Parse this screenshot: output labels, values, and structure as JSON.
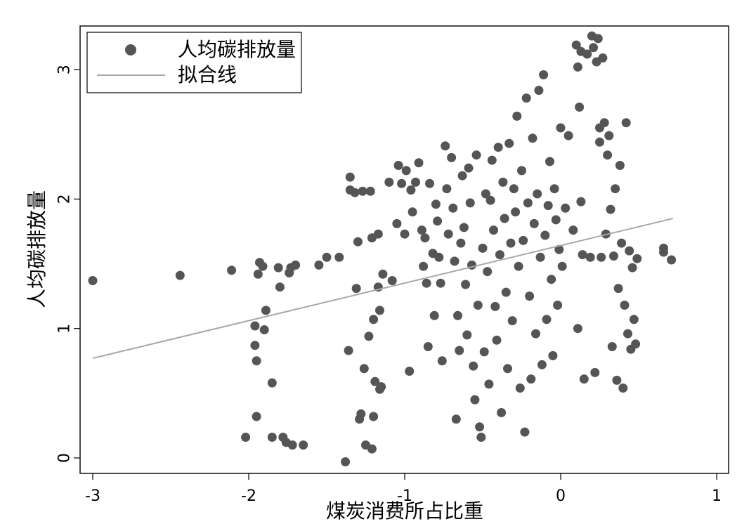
{
  "chart_data": {
    "type": "scatter",
    "xlabel": "煤炭消费所占比重",
    "ylabel": "人均碳排放量",
    "xlim": [
      -3.05,
      1.07
    ],
    "ylim": [
      -0.08,
      3.35
    ],
    "xticks": [
      "-3",
      "-2",
      "-1",
      "0",
      "1"
    ],
    "yticks": [
      "0",
      "1",
      "2",
      "3"
    ],
    "grid": false,
    "legend_position": "top-left",
    "legend": [
      "人均碳排放量",
      "拟合线"
    ],
    "colors": {
      "points": "#555555",
      "fit_line": "#a8a8a8",
      "frame": "#000000"
    },
    "fit_line": {
      "x": [
        -3.0,
        0.72
      ],
      "y": [
        0.77,
        1.85
      ]
    },
    "series": [
      {
        "name": "人均碳排放量",
        "points": [
          [
            -3.0,
            1.37
          ],
          [
            -2.44,
            1.41
          ],
          [
            -2.11,
            1.45
          ],
          [
            -2.02,
            0.16
          ],
          [
            -1.96,
            1.02
          ],
          [
            -1.96,
            0.87
          ],
          [
            -1.95,
            0.75
          ],
          [
            -1.95,
            0.32
          ],
          [
            -1.94,
            1.42
          ],
          [
            -1.93,
            1.51
          ],
          [
            -1.91,
            1.48
          ],
          [
            -1.9,
            0.99
          ],
          [
            -1.89,
            1.14
          ],
          [
            -1.85,
            0.58
          ],
          [
            -1.85,
            0.16
          ],
          [
            -1.81,
            1.47
          ],
          [
            -1.8,
            1.32
          ],
          [
            -1.78,
            0.16
          ],
          [
            -1.76,
            0.12
          ],
          [
            -1.74,
            1.43
          ],
          [
            -1.73,
            1.47
          ],
          [
            -1.72,
            0.1
          ],
          [
            -1.7,
            1.49
          ],
          [
            -1.65,
            0.1
          ],
          [
            -1.55,
            1.49
          ],
          [
            -1.5,
            1.55
          ],
          [
            -1.42,
            1.55
          ],
          [
            -1.38,
            -0.03
          ],
          [
            -1.36,
            0.83
          ],
          [
            -1.35,
            2.17
          ],
          [
            -1.35,
            2.07
          ],
          [
            -1.32,
            2.05
          ],
          [
            -1.31,
            1.31
          ],
          [
            -1.3,
            1.67
          ],
          [
            -1.29,
            0.3
          ],
          [
            -1.28,
            0.34
          ],
          [
            -1.27,
            2.06
          ],
          [
            -1.26,
            0.69
          ],
          [
            -1.25,
            0.1
          ],
          [
            -1.23,
            0.94
          ],
          [
            -1.22,
            2.06
          ],
          [
            -1.21,
            1.7
          ],
          [
            -1.21,
            0.07
          ],
          [
            -1.2,
            1.07
          ],
          [
            -1.2,
            0.32
          ],
          [
            -1.19,
            0.59
          ],
          [
            -1.17,
            1.73
          ],
          [
            -1.17,
            1.32
          ],
          [
            -1.16,
            1.14
          ],
          [
            -1.16,
            0.53
          ],
          [
            -1.15,
            0.55
          ],
          [
            -1.14,
            1.42
          ],
          [
            -1.1,
            2.13
          ],
          [
            -1.08,
            1.37
          ],
          [
            -1.05,
            1.81
          ],
          [
            -1.04,
            2.26
          ],
          [
            -1.02,
            2.12
          ],
          [
            -1.0,
            1.73
          ],
          [
            -0.99,
            2.22
          ],
          [
            -0.97,
            0.67
          ],
          [
            -0.96,
            2.07
          ],
          [
            -0.95,
            1.9
          ],
          [
            -0.93,
            2.13
          ],
          [
            -0.91,
            2.28
          ],
          [
            -0.89,
            1.76
          ],
          [
            -0.88,
            1.48
          ],
          [
            -0.87,
            1.7
          ],
          [
            -0.86,
            1.35
          ],
          [
            -0.85,
            0.86
          ],
          [
            -0.84,
            2.12
          ],
          [
            -0.82,
            1.58
          ],
          [
            -0.81,
            1.1
          ],
          [
            -0.8,
            1.96
          ],
          [
            -0.79,
            1.83
          ],
          [
            -0.78,
            1.55
          ],
          [
            -0.77,
            1.35
          ],
          [
            -0.76,
            0.75
          ],
          [
            -0.74,
            2.41
          ],
          [
            -0.73,
            2.08
          ],
          [
            -0.72,
            1.73
          ],
          [
            -0.7,
            2.32
          ],
          [
            -0.69,
            1.93
          ],
          [
            -0.68,
            1.52
          ],
          [
            -0.67,
            0.3
          ],
          [
            -0.66,
            1.1
          ],
          [
            -0.65,
            0.83
          ],
          [
            -0.64,
            1.66
          ],
          [
            -0.63,
            2.18
          ],
          [
            -0.62,
            1.78
          ],
          [
            -0.61,
            1.34
          ],
          [
            -0.6,
            0.95
          ],
          [
            -0.59,
            2.24
          ],
          [
            -0.58,
            1.97
          ],
          [
            -0.57,
            1.49
          ],
          [
            -0.56,
            0.71
          ],
          [
            -0.55,
            0.45
          ],
          [
            -0.54,
            2.34
          ],
          [
            -0.53,
            1.18
          ],
          [
            -0.52,
            0.24
          ],
          [
            -0.51,
            0.16
          ],
          [
            -0.5,
            1.62
          ],
          [
            -0.49,
            0.82
          ],
          [
            -0.48,
            2.04
          ],
          [
            -0.47,
            1.44
          ],
          [
            -0.46,
            0.57
          ],
          [
            -0.45,
            1.99
          ],
          [
            -0.44,
            2.3
          ],
          [
            -0.43,
            1.76
          ],
          [
            -0.42,
            1.17
          ],
          [
            -0.41,
            0.91
          ],
          [
            -0.4,
            2.4
          ],
          [
            -0.39,
            1.57
          ],
          [
            -0.38,
            0.35
          ],
          [
            -0.37,
            2.13
          ],
          [
            -0.36,
            1.85
          ],
          [
            -0.35,
            1.28
          ],
          [
            -0.34,
            0.69
          ],
          [
            -0.33,
            2.43
          ],
          [
            -0.32,
            1.66
          ],
          [
            -0.31,
            1.06
          ],
          [
            -0.3,
            2.08
          ],
          [
            -0.29,
            1.9
          ],
          [
            -0.28,
            2.64
          ],
          [
            -0.27,
            1.48
          ],
          [
            -0.26,
            0.54
          ],
          [
            -0.25,
            2.22
          ],
          [
            -0.24,
            1.68
          ],
          [
            -0.23,
            0.2
          ],
          [
            -0.22,
            2.78
          ],
          [
            -0.21,
            1.97
          ],
          [
            -0.2,
            1.25
          ],
          [
            -0.19,
            0.61
          ],
          [
            -0.18,
            2.47
          ],
          [
            -0.17,
            1.81
          ],
          [
            -0.16,
            0.96
          ],
          [
            -0.15,
            2.04
          ],
          [
            -0.14,
            2.84
          ],
          [
            -0.13,
            1.55
          ],
          [
            -0.12,
            0.72
          ],
          [
            -0.11,
            2.96
          ],
          [
            -0.1,
            1.72
          ],
          [
            -0.09,
            1.07
          ],
          [
            -0.08,
            1.95
          ],
          [
            -0.07,
            2.29
          ],
          [
            -0.06,
            1.38
          ],
          [
            -0.05,
            0.79
          ],
          [
            -0.04,
            2.08
          ],
          [
            -0.03,
            1.84
          ],
          [
            -0.02,
            1.18
          ],
          [
            -0.01,
            1.61
          ],
          [
            0.0,
            2.55
          ],
          [
            0.01,
            1.48
          ],
          [
            0.03,
            1.93
          ],
          [
            0.05,
            2.49
          ],
          [
            0.08,
            1.76
          ],
          [
            0.1,
            3.19
          ],
          [
            0.11,
            3.02
          ],
          [
            0.11,
            1.0
          ],
          [
            0.12,
            2.71
          ],
          [
            0.13,
            3.14
          ],
          [
            0.13,
            1.98
          ],
          [
            0.14,
            1.57
          ],
          [
            0.15,
            0.61
          ],
          [
            0.17,
            3.12
          ],
          [
            0.19,
            1.55
          ],
          [
            0.2,
            3.26
          ],
          [
            0.21,
            3.17
          ],
          [
            0.22,
            0.66
          ],
          [
            0.23,
            3.06
          ],
          [
            0.24,
            3.24
          ],
          [
            0.25,
            2.44
          ],
          [
            0.25,
            2.55
          ],
          [
            0.26,
            1.55
          ],
          [
            0.27,
            3.09
          ],
          [
            0.28,
            2.59
          ],
          [
            0.29,
            1.73
          ],
          [
            0.3,
            2.34
          ],
          [
            0.31,
            2.49
          ],
          [
            0.32,
            1.92
          ],
          [
            0.33,
            0.86
          ],
          [
            0.34,
            1.56
          ],
          [
            0.35,
            2.08
          ],
          [
            0.36,
            0.6
          ],
          [
            0.37,
            1.31
          ],
          [
            0.38,
            2.26
          ],
          [
            0.39,
            1.66
          ],
          [
            0.4,
            0.54
          ],
          [
            0.41,
            1.18
          ],
          [
            0.42,
            2.59
          ],
          [
            0.43,
            0.96
          ],
          [
            0.44,
            1.6
          ],
          [
            0.45,
            0.84
          ],
          [
            0.46,
            1.47
          ],
          [
            0.47,
            1.07
          ],
          [
            0.48,
            0.88
          ],
          [
            0.49,
            1.54
          ],
          [
            0.66,
            1.62
          ],
          [
            0.66,
            1.59
          ],
          [
            0.71,
            1.53
          ]
        ]
      }
    ]
  }
}
